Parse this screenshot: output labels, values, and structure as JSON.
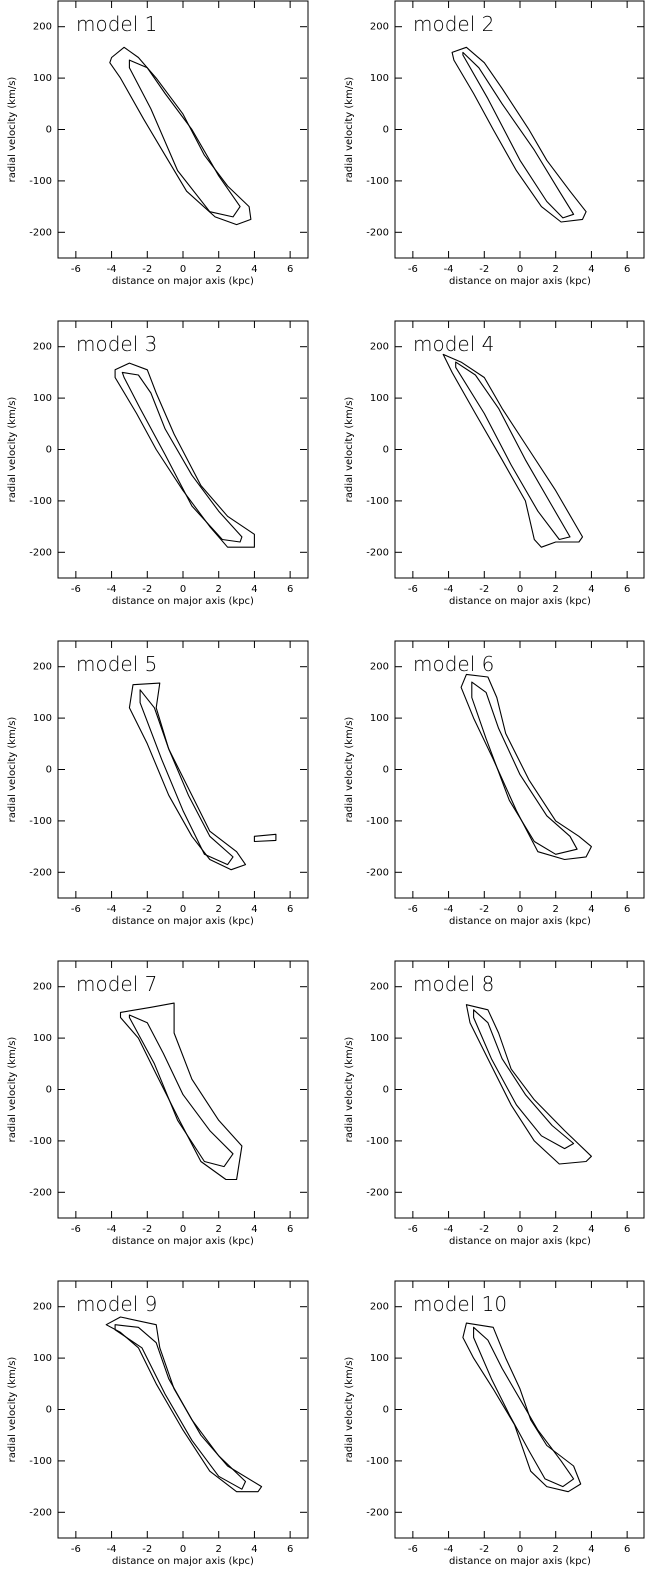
{
  "chart_data": [
    {
      "type": "contour",
      "title": "model 1",
      "xlabel": "distance on major axis (kpc)",
      "ylabel": "radial velocity (km/s)",
      "xlim": [
        -7,
        7
      ],
      "ylim": [
        -250,
        250
      ],
      "xticks": [
        -6,
        -4,
        -2,
        0,
        2,
        4,
        6
      ],
      "yticks": [
        -200,
        -100,
        0,
        100,
        200
      ],
      "contours": [
        {
          "x": [
            -4,
            -3.3,
            -2.5,
            -1.5,
            0,
            1.2,
            2.5,
            3.7,
            3.8,
            3,
            1.8,
            0.2,
            -1,
            -2.2,
            -3.5,
            -4.1
          ],
          "y": [
            140,
            160,
            140,
            100,
            30,
            -50,
            -110,
            -150,
            -175,
            -185,
            -170,
            -120,
            -50,
            20,
            100,
            130
          ]
        },
        {
          "x": [
            -3,
            -2,
            -1,
            0.5,
            2,
            3.2,
            2.8,
            1.5,
            -0.3,
            -1.8,
            -3
          ],
          "y": [
            135,
            120,
            70,
            0,
            -90,
            -150,
            -170,
            -160,
            -80,
            40,
            120
          ]
        }
      ]
    },
    {
      "type": "contour",
      "title": "model 2",
      "xlabel": "distance on major axis (kpc)",
      "ylabel": "radial velocity (km/s)",
      "xlim": [
        -7,
        7
      ],
      "ylim": [
        -250,
        250
      ],
      "xticks": [
        -6,
        -4,
        -2,
        0,
        2,
        4,
        6
      ],
      "yticks": [
        -200,
        -100,
        0,
        100,
        200
      ],
      "contours": [
        {
          "x": [
            -3.8,
            -3,
            -2,
            -1,
            0.5,
            1.5,
            2.8,
            3.7,
            3.5,
            2.3,
            1.2,
            -0.2,
            -1.5,
            -2.6,
            -3.7
          ],
          "y": [
            150,
            160,
            130,
            80,
            0,
            -60,
            -120,
            -160,
            -175,
            -180,
            -150,
            -80,
            0,
            70,
            135
          ]
        },
        {
          "x": [
            -3.2,
            -2.3,
            -1,
            0.8,
            2.2,
            3,
            2.4,
            1.5,
            0,
            -1.8,
            -3.2
          ],
          "y": [
            150,
            120,
            50,
            -40,
            -120,
            -165,
            -172,
            -140,
            -60,
            60,
            145
          ]
        }
      ]
    },
    {
      "type": "contour",
      "title": "model 3",
      "xlabel": "distance on major axis (kpc)",
      "ylabel": "radial velocity (km/s)",
      "xlim": [
        -7,
        7
      ],
      "ylim": [
        -250,
        250
      ],
      "xticks": [
        -6,
        -4,
        -2,
        0,
        2,
        4,
        6
      ],
      "yticks": [
        -200,
        -100,
        0,
        100,
        200
      ],
      "contours": [
        {
          "x": [
            -3.8,
            -3,
            -2,
            -1.5,
            -0.5,
            1,
            2.5,
            4,
            4,
            2.5,
            1.5,
            0,
            -1.5,
            -2.6,
            -3.8
          ],
          "y": [
            155,
            168,
            155,
            110,
            30,
            -70,
            -130,
            -165,
            -190,
            -190,
            -150,
            -80,
            0,
            70,
            140
          ]
        },
        {
          "x": [
            -3.4,
            -2.5,
            -1.8,
            -1,
            0.5,
            2,
            3.3,
            3.2,
            2.2,
            0.5,
            -1,
            -2.4,
            -3.3
          ],
          "y": [
            150,
            145,
            110,
            40,
            -50,
            -120,
            -170,
            -180,
            -175,
            -110,
            -10,
            80,
            140
          ]
        }
      ]
    },
    {
      "type": "contour",
      "title": "model 4",
      "xlabel": "distance on major axis (kpc)",
      "ylabel": "radial velocity (km/s)",
      "xlim": [
        -7,
        7
      ],
      "ylim": [
        -250,
        250
      ],
      "xticks": [
        -6,
        -4,
        -2,
        0,
        2,
        4,
        6
      ],
      "yticks": [
        -200,
        -100,
        0,
        100,
        200
      ],
      "contours": [
        {
          "x": [
            -4.3,
            -3.3,
            -2,
            -1,
            0.5,
            2,
            3.5,
            3.3,
            2,
            1.2,
            0.8,
            0.3,
            -1,
            -2.5,
            -3.8
          ],
          "y": [
            185,
            170,
            140,
            80,
            0,
            -80,
            -170,
            -180,
            -180,
            -190,
            -175,
            -100,
            -20,
            70,
            150
          ]
        },
        {
          "x": [
            -3.6,
            -2.5,
            -1.2,
            0.3,
            1.8,
            2.8,
            2.2,
            1,
            -0.5,
            -2,
            -3.6
          ],
          "y": [
            170,
            145,
            80,
            -20,
            -110,
            -170,
            -175,
            -120,
            -30,
            70,
            160
          ]
        }
      ]
    },
    {
      "type": "contour",
      "title": "model 5",
      "xlabel": "distance on major axis (kpc)",
      "ylabel": "radial velocity (km/s)",
      "xlim": [
        -7,
        7
      ],
      "ylim": [
        -250,
        250
      ],
      "xticks": [
        -6,
        -4,
        -2,
        0,
        2,
        4,
        6
      ],
      "yticks": [
        -200,
        -100,
        0,
        100,
        200
      ],
      "contours": [
        {
          "x": [
            -2.8,
            -1.3,
            -1.5,
            -0.8,
            0.5,
            1.5,
            3,
            3.5,
            2.7,
            1.5,
            0.5,
            -0.8,
            -2,
            -3
          ],
          "y": [
            165,
            168,
            120,
            40,
            -50,
            -120,
            -160,
            -185,
            -195,
            -175,
            -130,
            -50,
            50,
            120
          ]
        },
        {
          "x": [
            -2.4,
            -1.6,
            -0.8,
            0.3,
            1.5,
            2.8,
            2.5,
            1.2,
            0,
            -1.2,
            -2.4
          ],
          "y": [
            155,
            120,
            40,
            -50,
            -130,
            -170,
            -185,
            -165,
            -80,
            20,
            130
          ]
        },
        {
          "x": [
            4,
            5.2,
            5.2,
            4,
            4
          ],
          "y": [
            -130,
            -126,
            -138,
            -140,
            -130
          ]
        }
      ]
    },
    {
      "type": "contour",
      "title": "model 6",
      "xlabel": "distance on major axis (kpc)",
      "ylabel": "radial velocity (km/s)",
      "xlim": [
        -7,
        7
      ],
      "ylim": [
        -250,
        250
      ],
      "xticks": [
        -6,
        -4,
        -2,
        0,
        2,
        4,
        6
      ],
      "yticks": [
        -200,
        -100,
        0,
        100,
        200
      ],
      "contours": [
        {
          "x": [
            -3,
            -1.8,
            -1.3,
            -0.8,
            0.5,
            2,
            3.3,
            4,
            3.7,
            2.5,
            1,
            -0.2,
            -1.5,
            -2.6,
            -3.3
          ],
          "y": [
            185,
            180,
            140,
            70,
            -20,
            -100,
            -130,
            -150,
            -170,
            -175,
            -160,
            -80,
            20,
            100,
            160
          ]
        },
        {
          "x": [
            -2.7,
            -1.9,
            -1.2,
            0,
            1.5,
            2.8,
            3.2,
            2,
            0.8,
            -0.6,
            -1.9,
            -2.7
          ],
          "y": [
            170,
            150,
            80,
            -10,
            -90,
            -130,
            -155,
            -165,
            -140,
            -60,
            60,
            140
          ]
        }
      ]
    },
    {
      "type": "contour",
      "title": "model 7",
      "xlabel": "distance on major axis (kpc)",
      "ylabel": "radial velocity (km/s)",
      "xlim": [
        -7,
        7
      ],
      "ylim": [
        -250,
        250
      ],
      "xticks": [
        -6,
        -4,
        -2,
        0,
        2,
        4,
        6
      ],
      "yticks": [
        -200,
        -100,
        0,
        100,
        200
      ],
      "contours": [
        {
          "x": [
            -3.5,
            -1.8,
            -0.5,
            -0.5,
            0.5,
            2,
            3.3,
            3,
            2.4,
            1,
            -0.2,
            -1.5,
            -2.5,
            -3.5
          ],
          "y": [
            150,
            160,
            168,
            110,
            20,
            -60,
            -110,
            -175,
            -175,
            -140,
            -60,
            30,
            100,
            140
          ]
        },
        {
          "x": [
            -3,
            -2,
            -1.1,
            0,
            1.5,
            2.8,
            2.3,
            1.2,
            -0.3,
            -1.6,
            -3
          ],
          "y": [
            145,
            130,
            70,
            -10,
            -80,
            -125,
            -150,
            -140,
            -60,
            50,
            140
          ]
        }
      ]
    },
    {
      "type": "contour",
      "title": "model 8",
      "xlabel": "distance on major axis (kpc)",
      "ylabel": "radial velocity (km/s)",
      "xlim": [
        -7,
        7
      ],
      "ylim": [
        -250,
        250
      ],
      "xticks": [
        -6,
        -4,
        -2,
        0,
        2,
        4,
        6
      ],
      "yticks": [
        -200,
        -100,
        0,
        100,
        200
      ],
      "contours": [
        {
          "x": [
            -3,
            -1.8,
            -1.2,
            -0.5,
            0.8,
            2.5,
            4,
            3.7,
            2.2,
            0.8,
            -0.5,
            -1.8,
            -2.8
          ],
          "y": [
            165,
            155,
            110,
            40,
            -20,
            -80,
            -130,
            -140,
            -145,
            -100,
            -30,
            60,
            130
          ]
        },
        {
          "x": [
            -2.6,
            -1.8,
            -1,
            0.3,
            1.8,
            3,
            2.5,
            1.2,
            -0.2,
            -1.6,
            -2.6
          ],
          "y": [
            155,
            130,
            60,
            -10,
            -70,
            -105,
            -115,
            -90,
            -30,
            60,
            140
          ]
        }
      ]
    },
    {
      "type": "contour",
      "title": "model 9",
      "xlabel": "distance on major axis (kpc)",
      "ylabel": "radial velocity (km/s)",
      "xlim": [
        -7,
        7
      ],
      "ylim": [
        -250,
        250
      ],
      "xticks": [
        -6,
        -4,
        -2,
        0,
        2,
        4,
        6
      ],
      "yticks": [
        -200,
        -100,
        0,
        100,
        200
      ],
      "contours": [
        {
          "x": [
            -4.3,
            -3.5,
            -1.5,
            -1.3,
            -0.5,
            1,
            2.5,
            4.4,
            4.2,
            3,
            1.5,
            0,
            -1.5,
            -2.5,
            -3.5
          ],
          "y": [
            165,
            180,
            165,
            120,
            40,
            -50,
            -110,
            -150,
            -160,
            -160,
            -120,
            -40,
            50,
            120,
            150
          ]
        },
        {
          "x": [
            -3.8,
            -2.5,
            -1.5,
            -0.8,
            0.5,
            2,
            3.5,
            3.3,
            2,
            0.5,
            -1,
            -2.3,
            -3.8
          ],
          "y": [
            165,
            160,
            130,
            60,
            -20,
            -90,
            -140,
            -155,
            -130,
            -60,
            30,
            120,
            155
          ]
        }
      ]
    },
    {
      "type": "contour",
      "title": "model 10",
      "xlabel": "distance on major axis (kpc)",
      "ylabel": "radial velocity (km/s)",
      "xlim": [
        -7,
        7
      ],
      "ylim": [
        -250,
        250
      ],
      "xticks": [
        -6,
        -4,
        -2,
        0,
        2,
        4,
        6
      ],
      "yticks": [
        -200,
        -100,
        0,
        100,
        200
      ],
      "contours": [
        {
          "x": [
            -3,
            -1.5,
            -0.8,
            0,
            0.6,
            1.5,
            3,
            3.4,
            2.7,
            1.5,
            0.6,
            -0.3,
            -1.5,
            -2.6,
            -3.2
          ],
          "y": [
            168,
            160,
            100,
            40,
            -20,
            -70,
            -110,
            -145,
            -160,
            -150,
            -120,
            -30,
            40,
            100,
            140
          ]
        },
        {
          "x": [
            -2.6,
            -1.8,
            -1,
            0,
            1,
            2.3,
            3,
            2.4,
            1.4,
            0.5,
            -0.6,
            -1.6,
            -2.6
          ],
          "y": [
            160,
            135,
            80,
            20,
            -40,
            -100,
            -135,
            -150,
            -135,
            -80,
            -10,
            60,
            140
          ]
        }
      ]
    }
  ]
}
